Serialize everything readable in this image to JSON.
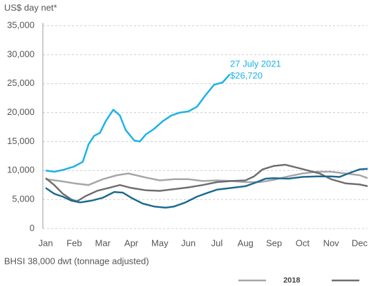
{
  "chart_data": {
    "type": "line",
    "y_label": "US$ day net*",
    "x_label": "BHSI 38,000 dwt (tonnage adjusted)",
    "annotation": [
      "27 July 2021",
      "$26,720"
    ],
    "xlim": [
      -0.1,
      11.28
    ],
    "xticks": [
      {
        "value": 0,
        "label": "Jan"
      },
      {
        "value": 1,
        "label": "Feb"
      },
      {
        "value": 2,
        "label": "Mar"
      },
      {
        "value": 3,
        "label": "Apr"
      },
      {
        "value": 4,
        "label": "May"
      },
      {
        "value": 5,
        "label": "Jun"
      },
      {
        "value": 6,
        "label": "Jul"
      },
      {
        "value": 7,
        "label": "Aug"
      },
      {
        "value": 8,
        "label": "Sep"
      },
      {
        "value": 9,
        "label": "Oct"
      },
      {
        "value": 10,
        "label": "Nov"
      },
      {
        "value": 11,
        "label": "Dec"
      }
    ],
    "ylim": [
      0,
      35000
    ],
    "yticks": [
      0,
      {
        "value": 5000,
        "label": "5,000"
      },
      {
        "value": 10000,
        "label": "10,000"
      },
      {
        "value": 15000,
        "label": "15,000"
      },
      {
        "value": 20000,
        "label": "20,000"
      },
      {
        "value": 25000,
        "label": "25,000"
      },
      {
        "value": 30000,
        "label": "30,000"
      },
      {
        "value": 35000,
        "label": "35,000"
      }
    ],
    "grid": true,
    "series": [
      {
        "name": "2018",
        "color": "#a6a6a6",
        "x": [
          0,
          0.5,
          1,
          1.5,
          2,
          2.5,
          2.9,
          3.5,
          4,
          4.5,
          5,
          5.5,
          6,
          6.5,
          7,
          7.5,
          8,
          8.5,
          9,
          9.5,
          10,
          10.5,
          11,
          11.28
        ],
        "values": [
          8500,
          8200,
          7800,
          7500,
          8500,
          9200,
          9500,
          8800,
          8300,
          8500,
          8500,
          8200,
          8300,
          8200,
          8000,
          8000,
          8400,
          9000,
          9500,
          9800,
          9800,
          9500,
          9200,
          8700
        ]
      },
      {
        "color": "#6d6e71",
        "x": [
          0,
          0.3,
          0.6,
          0.9,
          1.1,
          1.4,
          1.8,
          2.2,
          2.6,
          3,
          3.5,
          4,
          4.5,
          5,
          5.5,
          6,
          6.5,
          7,
          7.3,
          7.6,
          8,
          8.4,
          8.8,
          9.2,
          9.6,
          10,
          10.5,
          11,
          11.28
        ],
        "values": [
          8700,
          7500,
          6000,
          5000,
          4700,
          5600,
          6500,
          7000,
          7500,
          7000,
          6600,
          6500,
          6800,
          7100,
          7500,
          8000,
          8200,
          8300,
          9000,
          10200,
          10800,
          11000,
          10500,
          10000,
          9500,
          8500,
          7800,
          7600,
          7300
        ]
      },
      {
        "color": "#1b6a8f",
        "x": [
          0,
          0.3,
          0.6,
          0.9,
          1.2,
          1.6,
          2,
          2.4,
          2.7,
          3,
          3.4,
          3.8,
          4.2,
          4.5,
          4.9,
          5.3,
          5.7,
          6,
          6.5,
          7,
          7.4,
          7.7,
          8,
          8.5,
          9,
          9.5,
          10,
          10.3,
          10.6,
          11,
          11.28
        ],
        "values": [
          7000,
          6000,
          5500,
          4800,
          4500,
          4800,
          5300,
          6300,
          6200,
          5300,
          4300,
          3800,
          3600,
          3800,
          4500,
          5500,
          6200,
          6700,
          7000,
          7300,
          8000,
          8600,
          8700,
          8600,
          8900,
          9000,
          9000,
          8900,
          9500,
          10200,
          10300
        ]
      },
      {
        "color": "#1ab3e6",
        "x": [
          0,
          0.3,
          0.6,
          1,
          1.3,
          1.5,
          1.7,
          1.9,
          2.1,
          2.37,
          2.6,
          2.8,
          3.1,
          3.3,
          3.5,
          3.8,
          4.1,
          4.4,
          4.7,
          5,
          5.3,
          5.6,
          5.9,
          6.2,
          6.45
        ],
        "values": [
          10000,
          9800,
          10100,
          10700,
          11500,
          14500,
          16000,
          16500,
          18500,
          20500,
          19500,
          17000,
          15200,
          15000,
          16200,
          17200,
          18500,
          19500,
          20000,
          20200,
          21000,
          23000,
          24800,
          25200,
          26600
        ]
      }
    ]
  }
}
